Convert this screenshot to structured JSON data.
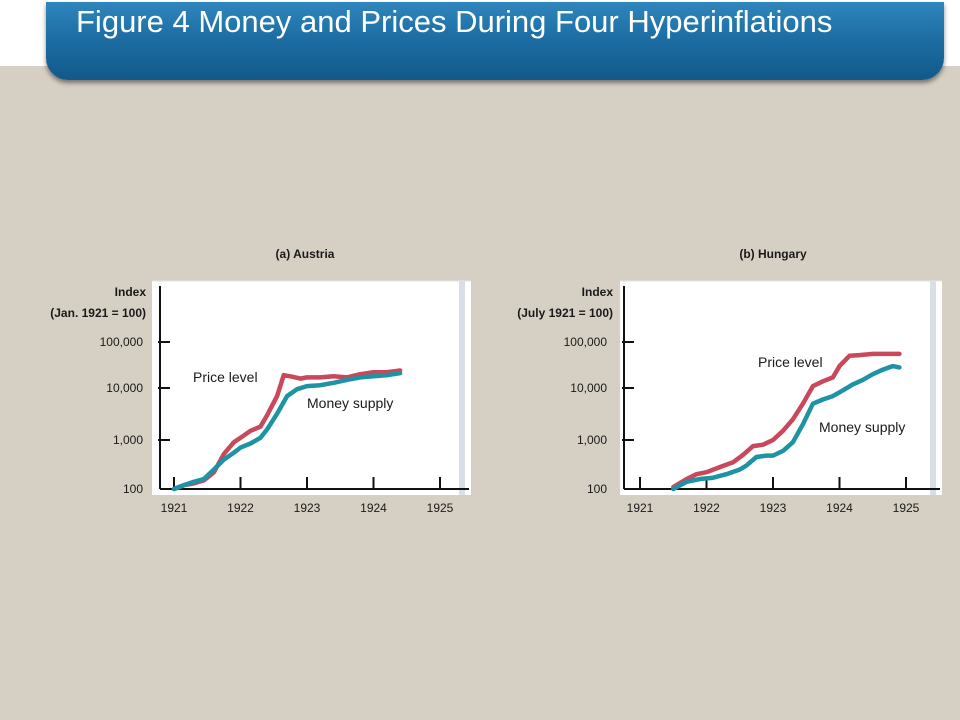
{
  "title": "Figure 4 Money and Prices During Four Hyperinflations",
  "colors": {
    "background": "#d6cfc4",
    "banner": "#1d6ea4",
    "plot_area": "#ffffff",
    "price_level": "#c9485b",
    "money_supply": "#1e93a3",
    "text": "#1a1a1a"
  },
  "chart_data": [
    {
      "type": "line",
      "title": "(a) Austria",
      "ylabel_line1": "Index",
      "ylabel_line2": "(Jan. 1921 = 100)",
      "yscale": "log",
      "ylim": [
        100,
        100000
      ],
      "yticks": [
        100,
        1000,
        10000,
        100000
      ],
      "ytick_labels": [
        "100",
        "1,000",
        "10,000",
        "100,000"
      ],
      "xlim": [
        1921,
        1925
      ],
      "xticks": [
        1921,
        1922,
        1923,
        1924,
        1925
      ],
      "xtick_labels": [
        "1921",
        "1922",
        "1923",
        "1924",
        "1925"
      ],
      "grid": false,
      "series": [
        {
          "name": "Price level",
          "color": "#c9485b",
          "x": [
            1921.0,
            1921.15,
            1921.3,
            1921.45,
            1921.6,
            1921.75,
            1921.9,
            1922.0,
            1922.15,
            1922.3,
            1922.4,
            1922.55,
            1922.65,
            1922.75,
            1922.9,
            1923.0,
            1923.2,
            1923.4,
            1923.6,
            1923.8,
            1924.0,
            1924.2,
            1924.4
          ],
          "y": [
            100,
            120,
            130,
            150,
            220,
            520,
            900,
            1100,
            1500,
            1800,
            3000,
            7000,
            19000,
            18000,
            16000,
            17000,
            17000,
            18000,
            17000,
            20000,
            22000,
            22000,
            24000
          ]
        },
        {
          "name": "Money supply",
          "color": "#1e93a3",
          "x": [
            1921.0,
            1921.15,
            1921.3,
            1921.45,
            1921.6,
            1921.75,
            1921.9,
            1922.0,
            1922.15,
            1922.3,
            1922.4,
            1922.55,
            1922.7,
            1922.85,
            1923.0,
            1923.2,
            1923.4,
            1923.6,
            1923.8,
            1924.0,
            1924.2,
            1924.4
          ],
          "y": [
            100,
            120,
            140,
            160,
            250,
            400,
            550,
            700,
            850,
            1100,
            1600,
            3200,
            7000,
            9500,
            11000,
            11500,
            13000,
            15000,
            17000,
            18000,
            19000,
            21000
          ]
        }
      ],
      "annotations": [
        {
          "text": "Price level",
          "series": "Price level"
        },
        {
          "text": "Money supply",
          "series": "Money supply"
        }
      ]
    },
    {
      "type": "line",
      "title": "(b) Hungary",
      "ylabel_line1": "Index",
      "ylabel_line2": "(July 1921 = 100)",
      "yscale": "log",
      "ylim": [
        100,
        100000
      ],
      "yticks": [
        100,
        1000,
        10000,
        100000
      ],
      "ytick_labels": [
        "100",
        "1,000",
        "10,000",
        "100,000"
      ],
      "xlim": [
        1921,
        1925
      ],
      "xticks": [
        1921,
        1922,
        1923,
        1924,
        1925
      ],
      "xtick_labels": [
        "1921",
        "1922",
        "1923",
        "1924",
        "1925"
      ],
      "grid": false,
      "series": [
        {
          "name": "Price level",
          "color": "#c9485b",
          "x": [
            1921.5,
            1921.7,
            1921.85,
            1922.0,
            1922.2,
            1922.4,
            1922.55,
            1922.7,
            1922.85,
            1923.0,
            1923.15,
            1923.3,
            1923.45,
            1923.6,
            1923.75,
            1923.9,
            1924.0,
            1924.15,
            1924.3,
            1924.5,
            1924.7,
            1924.9
          ],
          "y": [
            110,
            160,
            200,
            220,
            280,
            350,
            500,
            750,
            800,
            1000,
            1500,
            2500,
            5000,
            11000,
            14000,
            17000,
            30000,
            50000,
            52000,
            55000,
            55000,
            55000
          ]
        },
        {
          "name": "Money supply",
          "color": "#1e93a3",
          "x": [
            1921.5,
            1921.7,
            1921.9,
            1922.1,
            1922.3,
            1922.5,
            1922.6,
            1922.75,
            1922.9,
            1923.0,
            1923.15,
            1923.3,
            1923.45,
            1923.6,
            1923.75,
            1923.9,
            1924.05,
            1924.2,
            1924.35,
            1924.5,
            1924.65,
            1924.8,
            1924.9
          ],
          "y": [
            100,
            140,
            160,
            170,
            200,
            250,
            300,
            450,
            480,
            480,
            600,
            900,
            2000,
            5000,
            6000,
            7000,
            9000,
            12000,
            15000,
            20000,
            25000,
            30000,
            28000
          ]
        }
      ],
      "annotations": [
        {
          "text": "Price level",
          "series": "Price level"
        },
        {
          "text": "Money supply",
          "series": "Money supply"
        }
      ]
    }
  ]
}
